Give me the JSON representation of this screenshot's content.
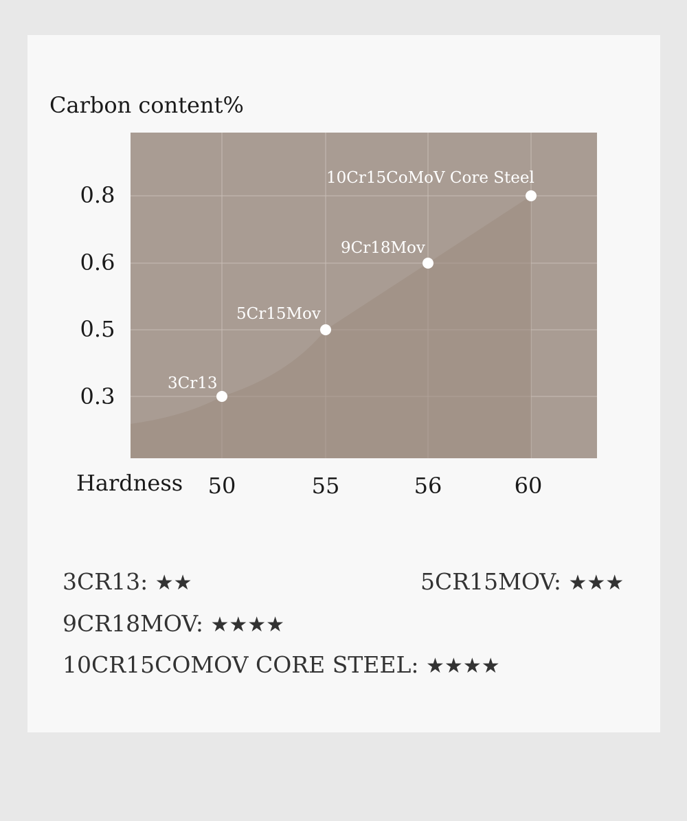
{
  "chart_data": {
    "type": "scatter",
    "title": "",
    "ylabel": "Carbon content%",
    "xlabel": "Hardness",
    "x_categories": [
      "50",
      "55",
      "56",
      "60"
    ],
    "y_ticks": [
      "0.8",
      "0.6",
      "0.5",
      "0.3"
    ],
    "points": [
      {
        "label": "3Cr13",
        "hardness": 50,
        "carbon": 0.3
      },
      {
        "label": "5Cr15Mov",
        "hardness": 55,
        "carbon": 0.5
      },
      {
        "label": "9Cr18Mov",
        "hardness": 56,
        "carbon": 0.6
      },
      {
        "label": "10Cr15CoMoV Core Steel",
        "hardness": 60,
        "carbon": 0.8
      }
    ],
    "plot_bg": "#a99c93",
    "area_color": "#9d8c80",
    "grid": true
  },
  "ratings": [
    {
      "name": "3CR13:",
      "stars": "★★"
    },
    {
      "name": "5CR15MOV:",
      "stars": "★★★"
    },
    {
      "name": "9CR18MOV:",
      "stars": "★★★★"
    },
    {
      "name": "10CR15COMOV CORE STEEL:",
      "stars": "★★★★"
    }
  ]
}
